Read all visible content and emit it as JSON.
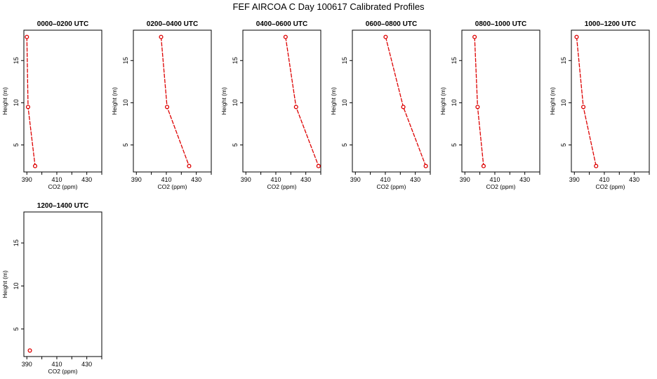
{
  "title": "FEF AIRCOA C  Day 100617  Calibrated Profiles",
  "chart_data": [
    {
      "type": "line",
      "title": "0000–0200 UTC",
      "xlabel": "CO2 (ppm)",
      "ylabel": "Height (m)",
      "xlim": [
        388,
        440
      ],
      "ylim": [
        1.8,
        18.6
      ],
      "xticks": [
        "390",
        "410",
        "430"
      ],
      "yticks": [
        "5",
        "10",
        "15"
      ],
      "x": [
        390.0,
        390.8,
        395.5
      ],
      "y": [
        17.8,
        9.5,
        2.5
      ]
    },
    {
      "type": "line",
      "title": "0200–0400 UTC",
      "xlabel": "CO2 (ppm)",
      "ylabel": "Height (m)",
      "xlim": [
        388,
        440
      ],
      "ylim": [
        1.8,
        18.6
      ],
      "xticks": [
        "390",
        "410",
        "430"
      ],
      "yticks": [
        "5",
        "10",
        "15"
      ],
      "x": [
        406.5,
        410.5,
        425.2
      ],
      "y": [
        17.8,
        9.5,
        2.5
      ]
    },
    {
      "type": "line",
      "title": "0400–0600 UTC",
      "xlabel": "CO2 (ppm)",
      "ylabel": "Height (m)",
      "xlim": [
        388,
        440
      ],
      "ylim": [
        1.8,
        18.6
      ],
      "xticks": [
        "390",
        "410",
        "430"
      ],
      "yticks": [
        "5",
        "10",
        "15"
      ],
      "x": [
        416.5,
        423.5,
        438.5
      ],
      "y": [
        17.8,
        9.5,
        2.5
      ]
    },
    {
      "type": "line",
      "title": "0600–0800 UTC",
      "xlabel": "CO2 (ppm)",
      "ylabel": "Height (m)",
      "xlim": [
        388,
        440
      ],
      "ylim": [
        1.8,
        18.6
      ],
      "xticks": [
        "390",
        "410",
        "430"
      ],
      "yticks": [
        "5",
        "10",
        "15"
      ],
      "x": [
        410.2,
        422.0,
        437.0
      ],
      "y": [
        17.8,
        9.5,
        2.5
      ]
    },
    {
      "type": "line",
      "title": "0800–1000 UTC",
      "xlabel": "CO2 (ppm)",
      "ylabel": "Height (m)",
      "xlim": [
        388,
        440
      ],
      "ylim": [
        1.8,
        18.6
      ],
      "xticks": [
        "390",
        "410",
        "430"
      ],
      "yticks": [
        "5",
        "10",
        "15"
      ],
      "x": [
        396.5,
        398.5,
        402.5
      ],
      "y": [
        17.8,
        9.5,
        2.5
      ]
    },
    {
      "type": "line",
      "title": "1000–1200 UTC",
      "xlabel": "CO2 (ppm)",
      "ylabel": "Height (m)",
      "xlim": [
        388,
        440
      ],
      "ylim": [
        1.8,
        18.6
      ],
      "xticks": [
        "390",
        "410",
        "430"
      ],
      "yticks": [
        "5",
        "10",
        "15"
      ],
      "x": [
        391.5,
        396.0,
        404.5
      ],
      "y": [
        17.8,
        9.5,
        2.5
      ]
    },
    {
      "type": "scatter",
      "title": "1200–1400 UTC",
      "xlabel": "CO2 (ppm)",
      "ylabel": "Height (m)",
      "xlim": [
        388,
        440
      ],
      "ylim": [
        1.8,
        18.6
      ],
      "xticks": [
        "390",
        "410",
        "430"
      ],
      "yticks": [
        "5",
        "10",
        "15"
      ],
      "x": [
        392.0
      ],
      "y": [
        2.5
      ]
    }
  ]
}
